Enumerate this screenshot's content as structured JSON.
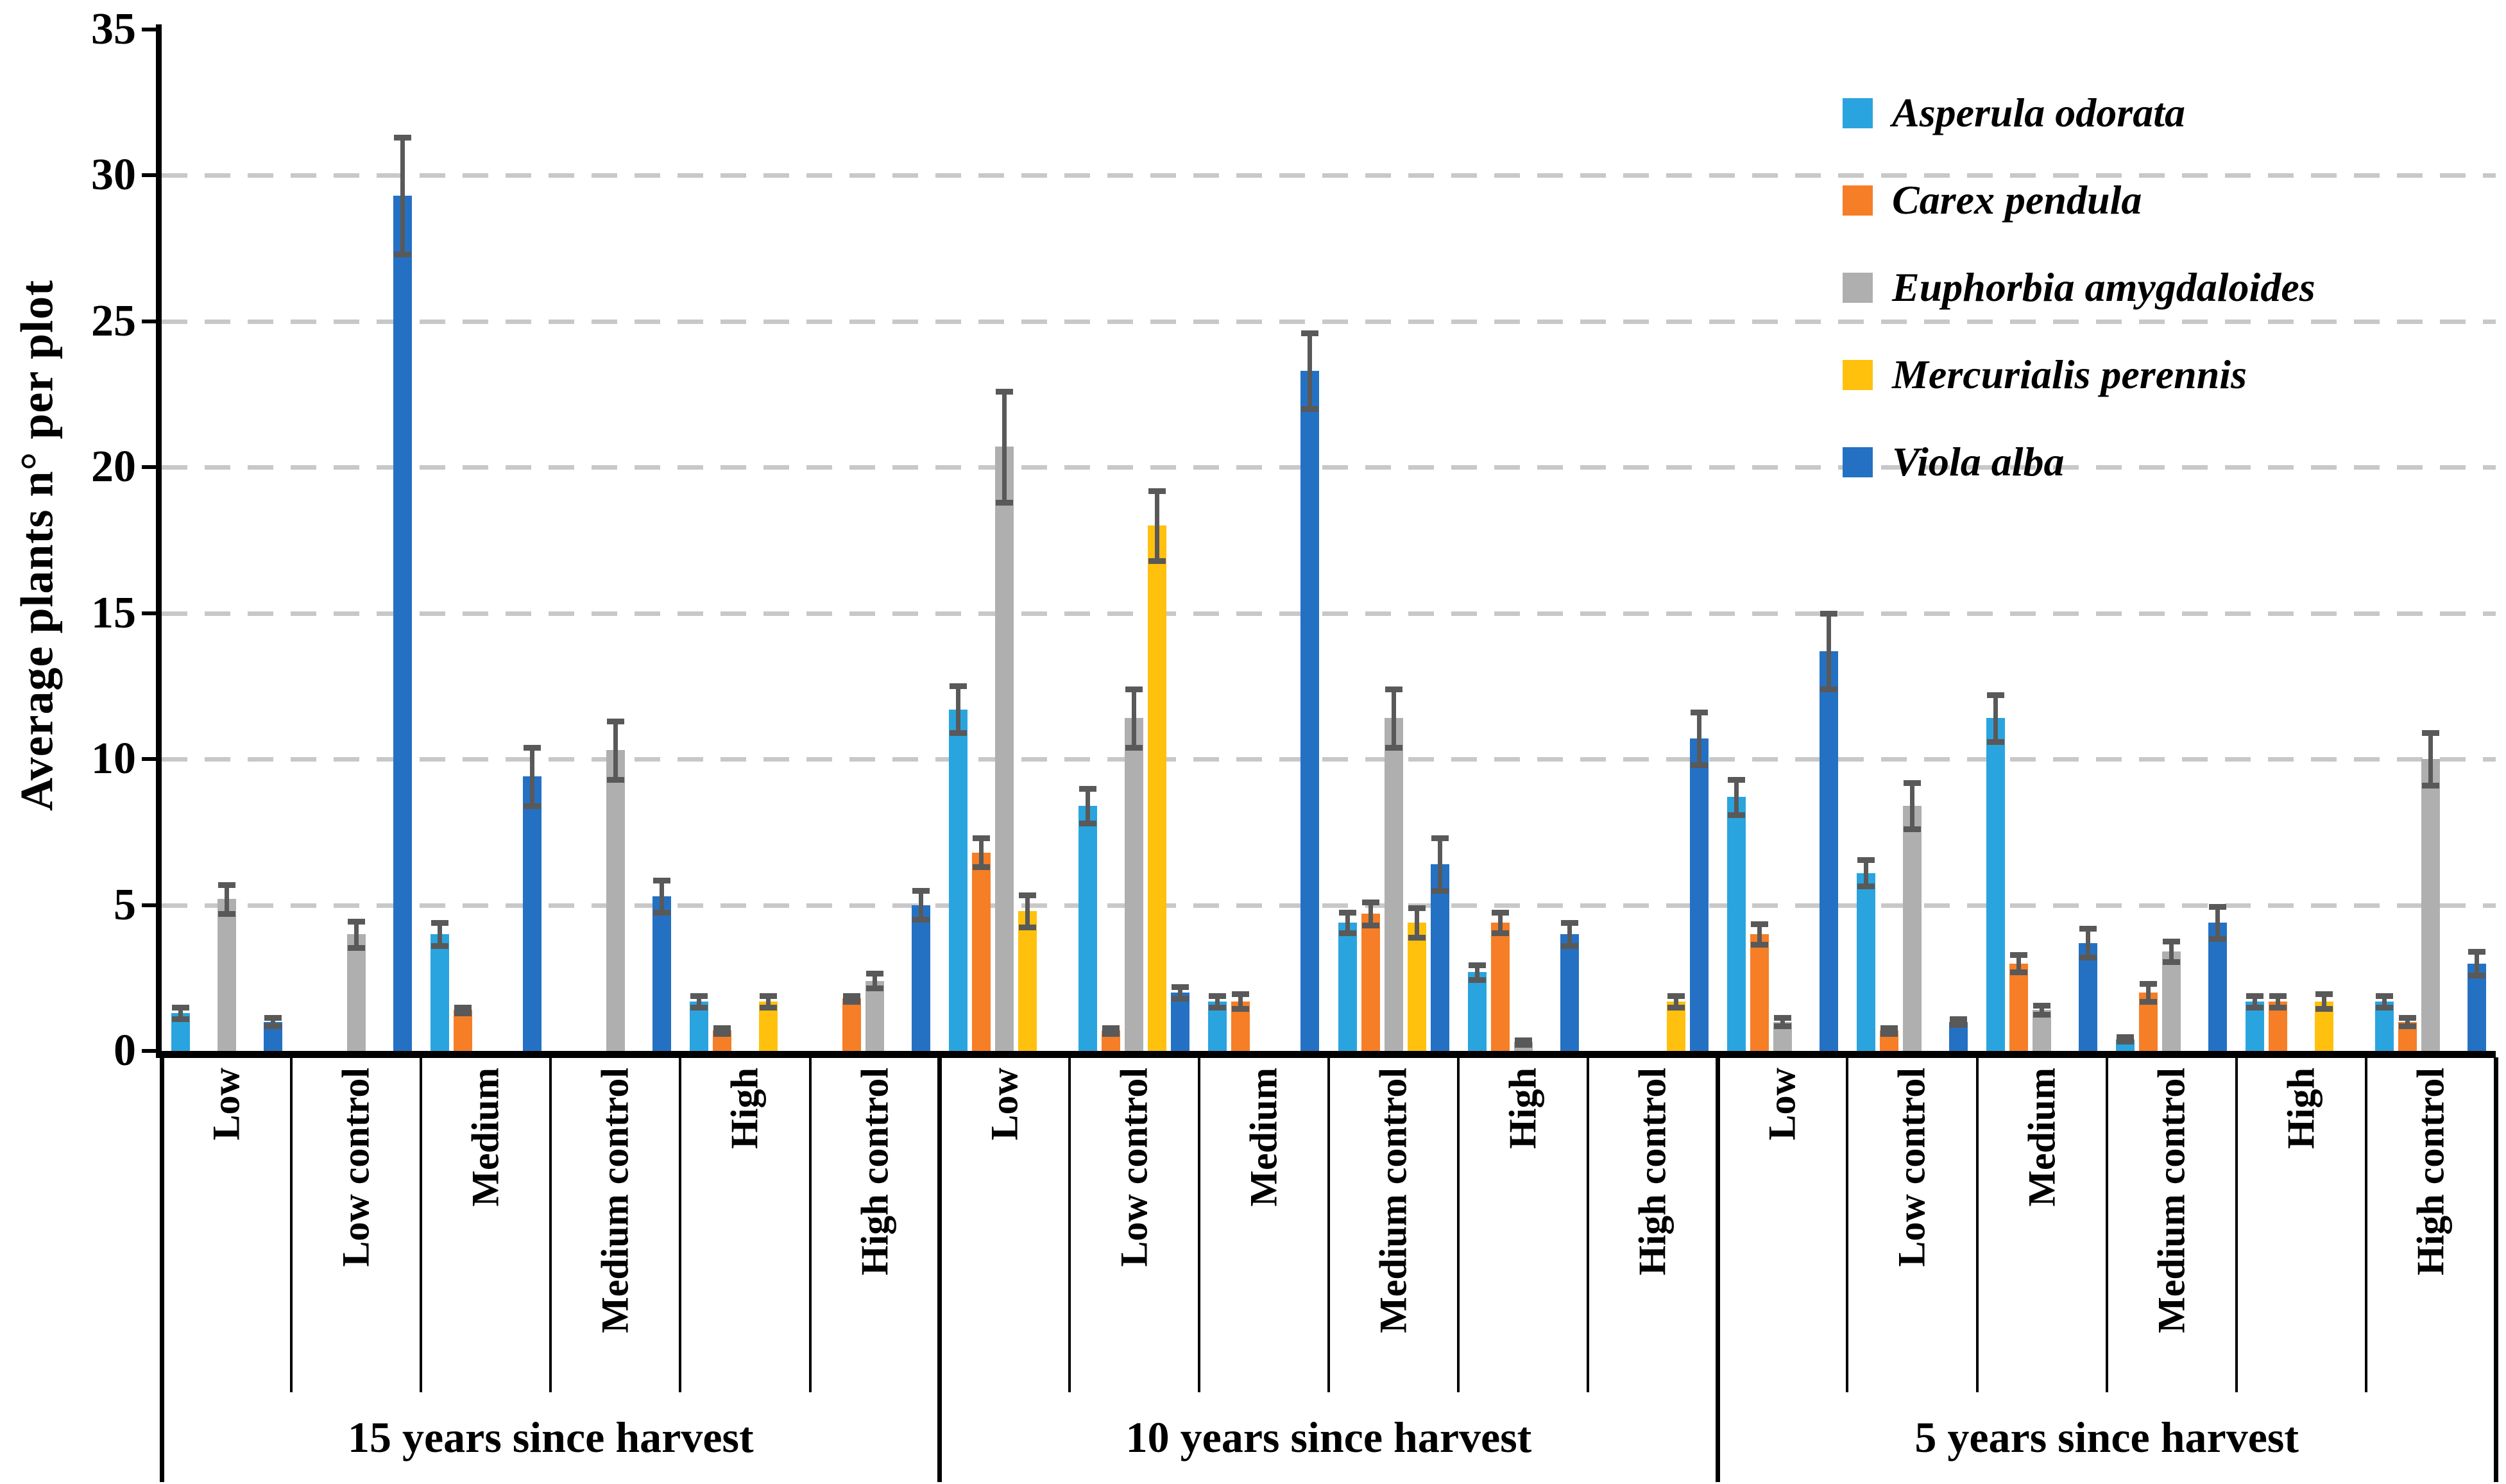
{
  "chart_data": {
    "type": "bar",
    "title": "",
    "ylabel": "Average plants n° per plot",
    "ylim": [
      0,
      35
    ],
    "yticks": [
      0,
      5,
      10,
      15,
      20,
      25,
      30,
      35
    ],
    "gridlines_at": [
      5,
      10,
      15,
      20,
      25,
      30
    ],
    "grid": "dashed-horizontal",
    "legend_position": "upper-right-inside",
    "error_bars": true,
    "category_labels": [
      "Low",
      "Low control",
      "Medium",
      "Medium control",
      "High",
      "High control"
    ],
    "blocks": [
      "15 years since harvest",
      "10 years since harvest",
      "5 years since harvest"
    ],
    "series": [
      {
        "name": "Asperula odorata",
        "color": "#2AA4DE",
        "values": [
          1.3,
          0,
          4.0,
          0,
          1.7,
          0,
          11.7,
          8.4,
          1.7,
          4.4,
          2.7,
          0,
          8.7,
          6.1,
          11.4,
          0.4,
          1.7,
          1.7
        ],
        "errors": [
          0.2,
          0,
          0.4,
          0,
          0.2,
          0,
          0.8,
          0.6,
          0.2,
          0.35,
          0.25,
          0,
          0.6,
          0.45,
          0.8,
          0.08,
          0.2,
          0.2
        ]
      },
      {
        "name": "Carex pendula",
        "color": "#F57E27",
        "values": [
          0,
          0,
          1.4,
          0,
          0.7,
          1.8,
          6.8,
          0.7,
          1.7,
          4.7,
          4.4,
          0,
          4.0,
          0.7,
          3.0,
          2.0,
          1.7,
          1.0
        ],
        "errors": [
          0,
          0,
          0.1,
          0,
          0.1,
          0.1,
          0.5,
          0.1,
          0.25,
          0.4,
          0.35,
          0,
          0.35,
          0.1,
          0.3,
          0.3,
          0.2,
          0.15
        ]
      },
      {
        "name": "Euphorbia amygdaloides",
        "color": "#AFAFAF",
        "values": [
          5.2,
          4.0,
          0,
          10.3,
          0,
          2.4,
          20.7,
          11.4,
          0,
          11.4,
          0.3,
          0,
          1.0,
          8.4,
          1.4,
          3.4,
          0,
          10.0
        ],
        "errors": [
          0.5,
          0.45,
          0,
          1.0,
          0,
          0.25,
          1.9,
          1.0,
          0,
          1.0,
          0.08,
          0,
          0.15,
          0.8,
          0.15,
          0.35,
          0,
          0.9
        ]
      },
      {
        "name": "Mercurialis perennis",
        "color": "#FFC10D",
        "values": [
          0,
          0,
          0,
          0,
          1.7,
          0,
          4.8,
          18.0,
          0,
          4.4,
          0,
          1.7,
          0,
          0,
          0,
          0,
          1.7,
          0
        ],
        "errors": [
          0,
          0,
          0,
          0,
          0.2,
          0,
          0.55,
          1.2,
          0,
          0.5,
          0,
          0.2,
          0,
          0,
          0,
          0,
          0.25,
          0
        ]
      },
      {
        "name": "Viola alba",
        "color": "#2471C4",
        "values": [
          1.0,
          29.3,
          9.4,
          5.3,
          0,
          5.0,
          0,
          2.0,
          23.3,
          6.4,
          4.0,
          10.7,
          13.7,
          1.0,
          3.7,
          4.4,
          0,
          3.0
        ],
        "errors": [
          0.15,
          2.0,
          1.0,
          0.55,
          0,
          0.5,
          0,
          0.2,
          1.3,
          0.9,
          0.4,
          0.9,
          1.3,
          0.1,
          0.5,
          0.55,
          0,
          0.4
        ]
      }
    ],
    "colors": {
      "error_bar": "#595959",
      "gridline": "#C8C8C8",
      "axis": "#000000",
      "background": "#FFFFFF"
    }
  }
}
